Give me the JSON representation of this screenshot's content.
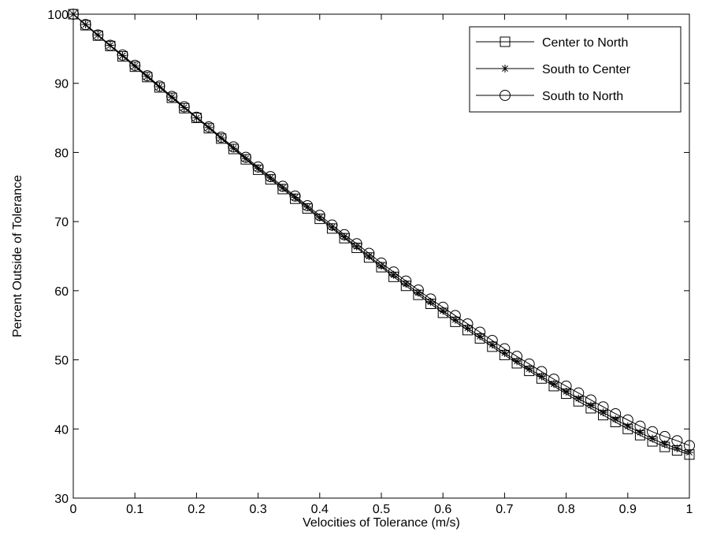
{
  "chart_data": {
    "type": "line",
    "title": "",
    "xlabel": "Velocities of Tolerance (m/s)",
    "ylabel": "Percent Outside of Tolerance",
    "xlim": [
      0,
      1
    ],
    "ylim": [
      30,
      100
    ],
    "xticks": [
      "0",
      "0.1",
      "0.2",
      "0.3",
      "0.4",
      "0.5",
      "0.6",
      "0.7",
      "0.8",
      "0.9",
      "1"
    ],
    "yticks": [
      "30",
      "40",
      "50",
      "60",
      "70",
      "80",
      "90",
      "100"
    ],
    "grid": false,
    "legend_position": "top-right",
    "x": [
      0,
      0.02,
      0.04,
      0.06,
      0.08,
      0.1,
      0.12,
      0.14,
      0.16,
      0.18,
      0.2,
      0.22,
      0.24,
      0.26,
      0.28,
      0.3,
      0.32,
      0.34,
      0.36,
      0.38,
      0.4,
      0.42,
      0.44,
      0.46,
      0.48,
      0.5,
      0.52,
      0.54,
      0.56,
      0.58,
      0.6,
      0.62,
      0.64,
      0.66,
      0.68,
      0.7,
      0.72,
      0.74,
      0.76,
      0.78,
      0.8,
      0.82,
      0.84,
      0.86,
      0.88,
      0.9,
      0.92,
      0.94,
      0.96,
      0.98,
      1.0
    ],
    "series": [
      {
        "name": "Center to North",
        "marker": "square",
        "values": [
          100.0,
          98.4,
          96.9,
          95.4,
          93.9,
          92.4,
          90.9,
          89.4,
          87.9,
          86.4,
          85.0,
          83.5,
          82.0,
          80.5,
          79.0,
          77.5,
          76.1,
          74.7,
          73.3,
          71.9,
          70.4,
          69.0,
          67.6,
          66.2,
          64.8,
          63.4,
          62.0,
          60.7,
          59.4,
          58.1,
          56.8,
          55.5,
          54.3,
          53.1,
          51.9,
          50.7,
          49.5,
          48.4,
          47.3,
          46.2,
          45.1,
          44.0,
          43.0,
          42.0,
          41.0,
          40.0,
          39.1,
          38.2,
          37.4,
          36.9,
          36.3
        ]
      },
      {
        "name": "South to Center",
        "marker": "asterisk",
        "values": [
          100.0,
          98.5,
          97.0,
          95.5,
          94.0,
          92.5,
          91.0,
          89.5,
          88.0,
          86.5,
          85.0,
          83.6,
          82.1,
          80.6,
          79.1,
          77.7,
          76.3,
          74.9,
          73.5,
          72.1,
          70.6,
          69.2,
          67.8,
          66.4,
          65.0,
          63.6,
          62.3,
          61.0,
          59.7,
          58.4,
          57.1,
          55.8,
          54.6,
          53.4,
          52.2,
          51.0,
          49.8,
          48.7,
          47.6,
          46.5,
          45.4,
          44.4,
          43.4,
          42.4,
          41.4,
          40.4,
          39.5,
          38.6,
          37.8,
          37.2,
          36.6
        ]
      },
      {
        "name": "South to North",
        "marker": "circle",
        "values": [
          100.0,
          98.5,
          97.0,
          95.5,
          94.1,
          92.6,
          91.1,
          89.6,
          88.1,
          86.6,
          85.1,
          83.7,
          82.2,
          80.8,
          79.3,
          77.9,
          76.5,
          75.1,
          73.7,
          72.3,
          70.9,
          69.5,
          68.1,
          66.8,
          65.4,
          64.0,
          62.7,
          61.4,
          60.1,
          58.8,
          57.6,
          56.4,
          55.2,
          54.0,
          52.8,
          51.6,
          50.5,
          49.4,
          48.3,
          47.2,
          46.2,
          45.2,
          44.2,
          43.2,
          42.2,
          41.3,
          40.4,
          39.6,
          38.9,
          38.3,
          37.6
        ]
      }
    ]
  }
}
